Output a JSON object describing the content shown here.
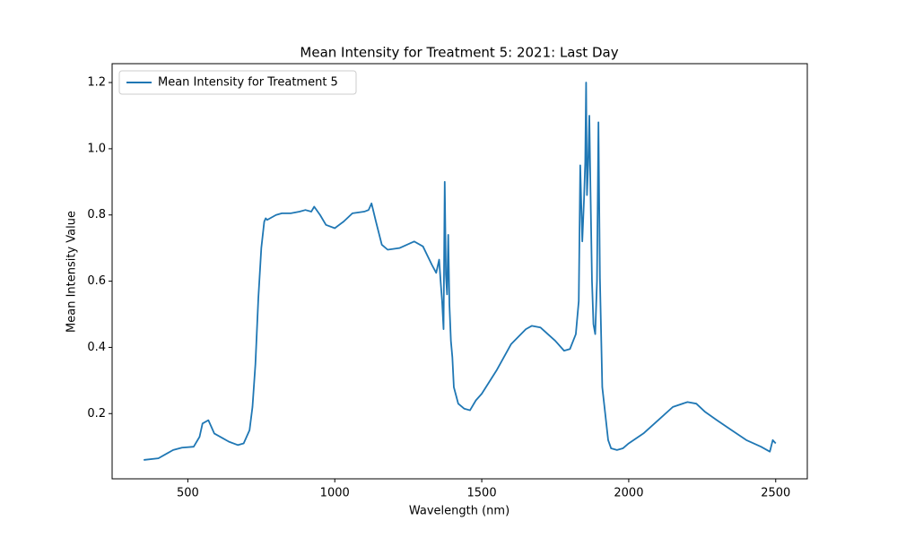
{
  "chart_data": {
    "type": "line",
    "title": "Mean Intensity for Treatment 5: 2021: Last Day",
    "x_label": "Wavelength (nm)",
    "y_label": "Mean Intensity Value",
    "x": [
      350,
      400,
      430,
      450,
      480,
      520,
      540,
      550,
      570,
      590,
      620,
      640,
      670,
      690,
      710,
      720,
      730,
      740,
      750,
      760,
      765,
      770,
      800,
      820,
      850,
      880,
      900,
      920,
      930,
      950,
      970,
      1000,
      1030,
      1060,
      1100,
      1115,
      1125,
      1140,
      1160,
      1180,
      1220,
      1270,
      1300,
      1330,
      1345,
      1355,
      1360,
      1365,
      1370,
      1374,
      1378,
      1382,
      1386,
      1390,
      1395,
      1400,
      1405,
      1420,
      1440,
      1460,
      1480,
      1500,
      1550,
      1600,
      1650,
      1670,
      1700,
      1750,
      1780,
      1800,
      1820,
      1830,
      1835,
      1842,
      1848,
      1852,
      1855,
      1858,
      1862,
      1866,
      1870,
      1875,
      1880,
      1886,
      1892,
      1897,
      1902,
      1910,
      1920,
      1930,
      1940,
      1960,
      1980,
      2000,
      2050,
      2100,
      2150,
      2200,
      2230,
      2260,
      2300,
      2350,
      2400,
      2450,
      2480,
      2490,
      2500
    ],
    "series": [
      {
        "name": "Mean Intensity for Treatment 5",
        "color": "#1f77b4",
        "values": [
          0.06,
          0.065,
          0.08,
          0.09,
          0.097,
          0.1,
          0.13,
          0.17,
          0.18,
          0.14,
          0.125,
          0.115,
          0.105,
          0.11,
          0.15,
          0.22,
          0.35,
          0.55,
          0.7,
          0.78,
          0.79,
          0.785,
          0.8,
          0.805,
          0.805,
          0.81,
          0.815,
          0.81,
          0.825,
          0.8,
          0.77,
          0.76,
          0.78,
          0.805,
          0.81,
          0.815,
          0.835,
          0.78,
          0.71,
          0.695,
          0.7,
          0.72,
          0.705,
          0.65,
          0.625,
          0.665,
          0.6,
          0.54,
          0.455,
          0.9,
          0.62,
          0.56,
          0.74,
          0.53,
          0.42,
          0.37,
          0.28,
          0.23,
          0.215,
          0.21,
          0.24,
          0.26,
          0.33,
          0.41,
          0.455,
          0.465,
          0.46,
          0.42,
          0.39,
          0.395,
          0.44,
          0.54,
          0.95,
          0.72,
          0.85,
          0.96,
          1.2,
          0.86,
          0.95,
          1.1,
          0.87,
          0.6,
          0.47,
          0.44,
          0.6,
          1.08,
          0.61,
          0.28,
          0.2,
          0.12,
          0.095,
          0.09,
          0.095,
          0.11,
          0.14,
          0.18,
          0.22,
          0.235,
          0.23,
          0.205,
          0.18,
          0.15,
          0.12,
          0.1,
          0.085,
          0.12,
          0.11
        ]
      }
    ],
    "xlim": [
      242.5,
      2607.5
    ],
    "xticks": [
      500,
      1000,
      1500,
      2000,
      2500
    ],
    "ylim": [
      0.003,
      1.257
    ],
    "yticks": [
      {
        "value": 0.2,
        "label": "0.2"
      },
      {
        "value": 0.4,
        "label": "0.4"
      },
      {
        "value": 0.6,
        "label": "0.6"
      },
      {
        "value": 0.8,
        "label": "0.8"
      },
      {
        "value": 1.0,
        "label": "1.0"
      },
      {
        "value": 1.2,
        "label": "1.2"
      }
    ],
    "legend": "upper left",
    "grid": false
  }
}
